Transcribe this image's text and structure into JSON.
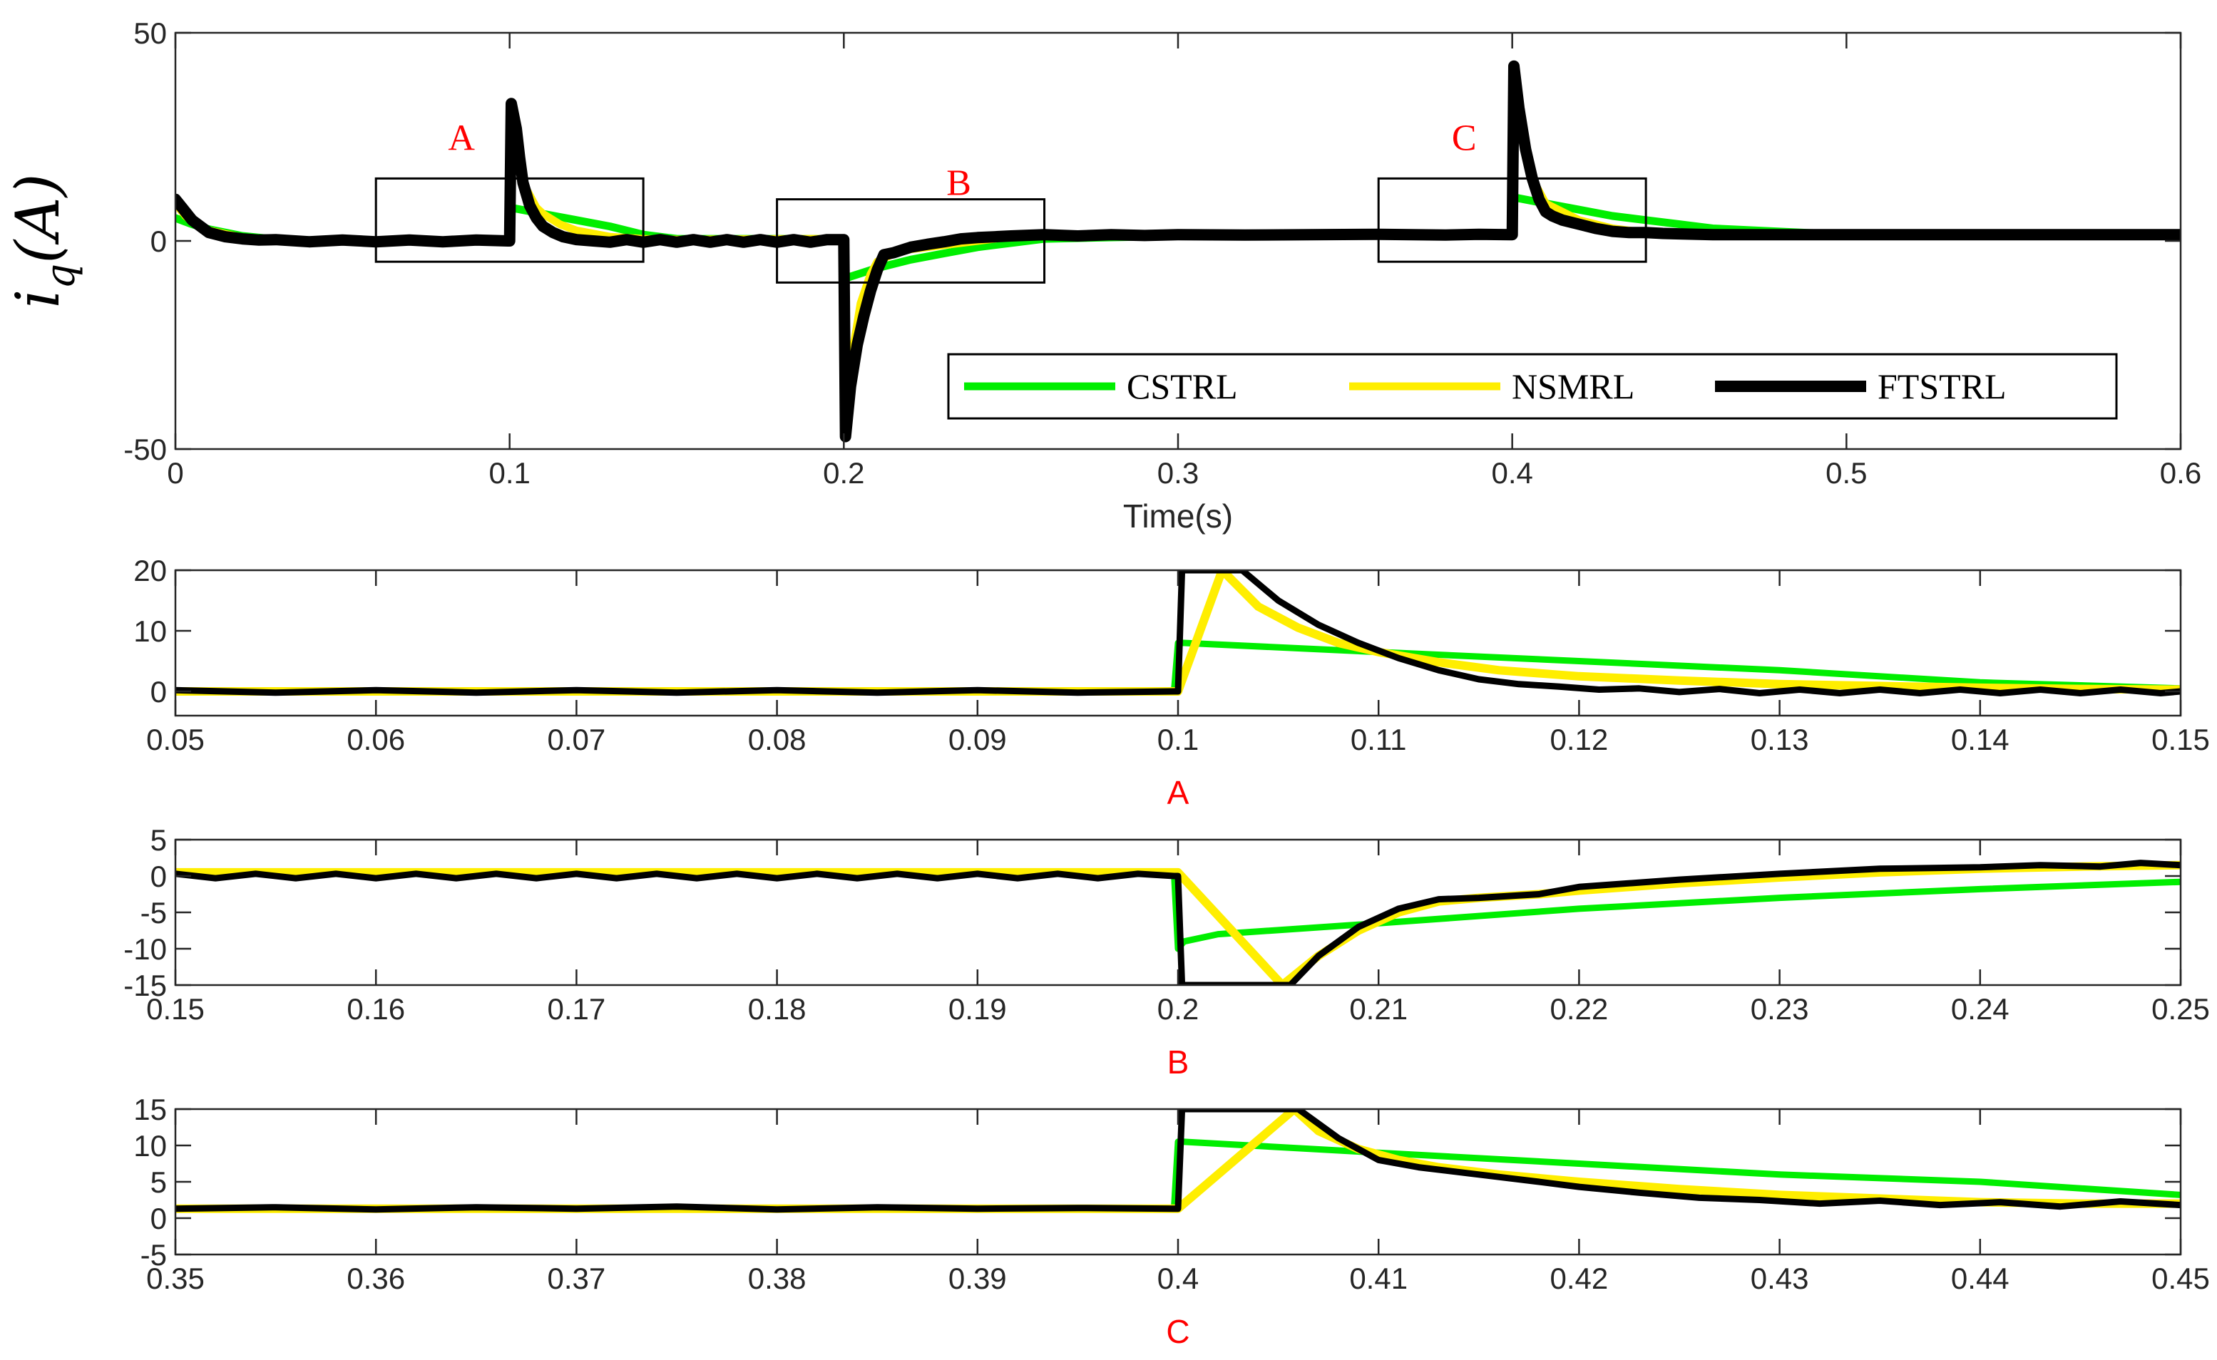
{
  "chart_data": [
    {
      "id": "main",
      "type": "line",
      "xlabel": "Time(s)",
      "ylabel": {
        "base": "i",
        "sub": "q",
        "rest": "(A)"
      },
      "xlim": [
        0,
        0.6
      ],
      "ylim": [
        -50,
        50
      ],
      "xticks": [
        0,
        0.1,
        0.2,
        0.3,
        0.4,
        0.5,
        0.6
      ],
      "xtick_labels": [
        "0",
        "0.1",
        "0.2",
        "0.3",
        "0.4",
        "0.5",
        "0.6"
      ],
      "yticks": [
        -50,
        0,
        50
      ],
      "ytick_labels": [
        "-50",
        "0",
        "50"
      ],
      "legend": {
        "position": "bottom-right",
        "entries": [
          "CSTRL",
          "NSMRL",
          "FTSTRL"
        ]
      },
      "zoom_boxes": [
        {
          "label": "A",
          "x": [
            0.06,
            0.14
          ],
          "y": [
            -5,
            15
          ]
        },
        {
          "label": "B",
          "x": [
            0.18,
            0.26
          ],
          "y": [
            -10,
            10
          ]
        },
        {
          "label": "C",
          "x": [
            0.36,
            0.44
          ],
          "y": [
            -5,
            15
          ]
        }
      ],
      "series": [
        {
          "name": "CSTRL",
          "color": "#00ee00",
          "width": 11,
          "x": [
            0,
            0.005,
            0.01,
            0.02,
            0.03,
            0.05,
            0.08,
            0.0995,
            0.1,
            0.1003,
            0.11,
            0.12,
            0.13,
            0.14,
            0.15,
            0.19,
            0.1995,
            0.2,
            0.2003,
            0.21,
            0.22,
            0.23,
            0.24,
            0.25,
            0.26,
            0.3,
            0.3995,
            0.4,
            0.4003,
            0.41,
            0.42,
            0.43,
            0.44,
            0.45,
            0.46,
            0.5,
            0.6
          ],
          "y": [
            5.5,
            4,
            2.8,
            1.2,
            0.4,
            0,
            0,
            0,
            8,
            8,
            6.5,
            5,
            3.5,
            1.5,
            0.5,
            0.5,
            0.5,
            -10,
            -9,
            -6.5,
            -4.5,
            -3,
            -1.5,
            -0.5,
            0.5,
            1.2,
            1.3,
            1.3,
            10.5,
            9,
            7.5,
            6,
            5,
            4,
            3,
            1.5,
            1.5
          ]
        },
        {
          "name": "NSMRL",
          "color": "#ffee00",
          "width": 11,
          "x": [
            0,
            0.003,
            0.006,
            0.01,
            0.02,
            0.03,
            0.05,
            0.08,
            0.0995,
            0.1,
            0.1005,
            0.102,
            0.104,
            0.108,
            0.11,
            0.115,
            0.12,
            0.13,
            0.14,
            0.15,
            0.19,
            0.1995,
            0.2,
            0.2005,
            0.203,
            0.205,
            0.208,
            0.21,
            0.215,
            0.22,
            0.23,
            0.24,
            0.25,
            0.26,
            0.3,
            0.3995,
            0.4,
            0.4005,
            0.403,
            0.406,
            0.41,
            0.42,
            0.43,
            0.44,
            0.45,
            0.5,
            0.6
          ],
          "y": [
            9,
            6,
            4,
            2.5,
            0.8,
            0.3,
            0,
            0,
            0,
            0,
            30,
            20,
            14,
            8,
            6.5,
            4,
            2.5,
            1,
            0.5,
            0.3,
            0.5,
            0.5,
            0.5,
            -44,
            -25,
            -15,
            -8,
            -5,
            -3,
            -2,
            -1,
            0,
            1,
            1.2,
            1.2,
            1.2,
            1.2,
            38,
            25,
            15,
            9,
            5,
            3,
            2,
            1.6,
            1.5,
            1.5
          ]
        },
        {
          "name": "FTSTRL",
          "color": "#000000",
          "width": 16,
          "x": [
            0,
            0.002,
            0.005,
            0.01,
            0.015,
            0.02,
            0.025,
            0.03,
            0.04,
            0.05,
            0.06,
            0.07,
            0.08,
            0.09,
            0.0995,
            0.1,
            0.1005,
            0.102,
            0.103,
            0.104,
            0.106,
            0.108,
            0.11,
            0.113,
            0.116,
            0.12,
            0.125,
            0.13,
            0.135,
            0.14,
            0.145,
            0.15,
            0.155,
            0.16,
            0.165,
            0.17,
            0.175,
            0.18,
            0.185,
            0.19,
            0.195,
            0.1995,
            0.2,
            0.2005,
            0.202,
            0.204,
            0.206,
            0.208,
            0.21,
            0.212,
            0.215,
            0.22,
            0.225,
            0.23,
            0.235,
            0.24,
            0.245,
            0.25,
            0.26,
            0.27,
            0.28,
            0.29,
            0.3,
            0.32,
            0.34,
            0.36,
            0.38,
            0.39,
            0.3995,
            0.4,
            0.4005,
            0.402,
            0.404,
            0.406,
            0.408,
            0.41,
            0.412,
            0.415,
            0.42,
            0.425,
            0.43,
            0.435,
            0.44,
            0.445,
            0.45,
            0.46,
            0.48,
            0.5,
            0.55,
            0.6
          ],
          "y": [
            10,
            8,
            5,
            2,
            1,
            0.5,
            0.2,
            0.3,
            -0.2,
            0.2,
            -0.2,
            0.2,
            -0.2,
            0.2,
            0,
            0,
            33,
            27,
            20,
            14,
            8.5,
            5.5,
            3.5,
            2,
            1,
            0.3,
            0,
            -0.3,
            0.3,
            -0.3,
            0.3,
            -0.3,
            0.3,
            -0.3,
            0.3,
            -0.3,
            0.3,
            -0.3,
            0.3,
            -0.3,
            0.3,
            0.3,
            0.3,
            -47,
            -35,
            -25,
            -18,
            -12,
            -7,
            -3.3,
            -2.8,
            -1.5,
            -0.8,
            -0.2,
            0.5,
            0.8,
            1,
            1.2,
            1.5,
            1.2,
            1.5,
            1.3,
            1.5,
            1.4,
            1.5,
            1.6,
            1.4,
            1.6,
            1.5,
            1.5,
            42,
            32,
            22,
            15,
            10,
            7,
            6,
            5,
            4,
            3,
            2.3,
            2,
            2,
            1.8,
            1.7,
            1.5,
            1.5,
            1.5,
            1.5,
            1.5
          ]
        }
      ]
    },
    {
      "id": "zoom-a",
      "type": "line",
      "title": "A",
      "xlim": [
        0.05,
        0.15
      ],
      "ylim": [
        -4,
        20
      ],
      "xticks": [
        0.05,
        0.06,
        0.07,
        0.08,
        0.09,
        0.1,
        0.11,
        0.12,
        0.13,
        0.14,
        0.15
      ],
      "xtick_labels": [
        "0.05",
        "0.06",
        "0.07",
        "0.08",
        "0.09",
        "0.1",
        "0.11",
        "0.12",
        "0.13",
        "0.14",
        "0.15"
      ],
      "yticks": [
        0,
        10,
        20
      ],
      "ytick_labels": [
        "0",
        "10",
        "20"
      ],
      "series": [
        {
          "name": "CSTRL",
          "color": "#00ee00",
          "width": 9,
          "x": [
            0.05,
            0.0998,
            0.1,
            0.1003,
            0.11,
            0.12,
            0.13,
            0.14,
            0.15
          ],
          "y": [
            0,
            0,
            8,
            8,
            6.5,
            5,
            3.5,
            1.5,
            0.5
          ]
        },
        {
          "name": "NSMRL",
          "color": "#ffee00",
          "width": 12,
          "x": [
            0.05,
            0.0998,
            0.1,
            0.1022,
            0.104,
            0.106,
            0.108,
            0.11,
            0.113,
            0.116,
            0.12,
            0.125,
            0.13,
            0.135,
            0.14,
            0.145,
            0.15
          ],
          "y": [
            0,
            0,
            0,
            20,
            14,
            10.5,
            8,
            6.5,
            4.8,
            3.5,
            2.5,
            1.8,
            1.2,
            0.9,
            0.6,
            0.4,
            0.3
          ]
        },
        {
          "name": "FTSTRL",
          "color": "#000000",
          "width": 9,
          "x": [
            0.05,
            0.055,
            0.06,
            0.065,
            0.07,
            0.075,
            0.08,
            0.085,
            0.09,
            0.095,
            0.0998,
            0.1,
            0.1002,
            0.1005,
            0.1032,
            0.105,
            0.107,
            0.109,
            0.111,
            0.113,
            0.115,
            0.117,
            0.119,
            0.121,
            0.123,
            0.125,
            0.127,
            0.129,
            0.131,
            0.133,
            0.135,
            0.137,
            0.139,
            0.141,
            0.143,
            0.145,
            0.147,
            0.149,
            0.15
          ],
          "y": [
            0.2,
            -0.2,
            0.2,
            -0.2,
            0.2,
            -0.2,
            0.2,
            -0.2,
            0.2,
            -0.2,
            0,
            0,
            20,
            20,
            20,
            15,
            11,
            8,
            5.5,
            3.5,
            2,
            1.2,
            0.8,
            0.3,
            0.5,
            -0.1,
            0.4,
            -0.3,
            0.3,
            -0.3,
            0.3,
            -0.3,
            0.3,
            -0.3,
            0.3,
            -0.3,
            0.3,
            -0.3,
            0
          ]
        }
      ]
    },
    {
      "id": "zoom-b",
      "type": "line",
      "title": "B",
      "xlim": [
        0.15,
        0.25
      ],
      "ylim": [
        -15,
        5
      ],
      "xticks": [
        0.15,
        0.16,
        0.17,
        0.18,
        0.19,
        0.2,
        0.21,
        0.22,
        0.23,
        0.24,
        0.25
      ],
      "xtick_labels": [
        "0.15",
        "0.16",
        "0.17",
        "0.18",
        "0.19",
        "0.2",
        "0.21",
        "0.22",
        "0.23",
        "0.24",
        "0.25"
      ],
      "yticks": [
        -15,
        -10,
        -5,
        0,
        5
      ],
      "ytick_labels": [
        "-15",
        "-10",
        "-5",
        "0",
        "5"
      ],
      "series": [
        {
          "name": "CSTRL",
          "color": "#00ee00",
          "width": 9,
          "x": [
            0.15,
            0.1998,
            0.2,
            0.2003,
            0.202,
            0.21,
            0.22,
            0.23,
            0.24,
            0.25
          ],
          "y": [
            0.5,
            0.5,
            -10,
            -9,
            -8,
            -6.5,
            -4.5,
            -3,
            -1.8,
            -0.8
          ]
        },
        {
          "name": "NSMRL",
          "color": "#ffee00",
          "width": 12,
          "x": [
            0.15,
            0.1998,
            0.2,
            0.2052,
            0.207,
            0.209,
            0.211,
            0.213,
            0.215,
            0.218,
            0.22,
            0.225,
            0.23,
            0.235,
            0.24,
            0.245,
            0.25
          ],
          "y": [
            0.5,
            0.5,
            0.5,
            -15,
            -11,
            -7.5,
            -5,
            -3.5,
            -3,
            -2.5,
            -2,
            -1,
            -0.2,
            0.5,
            1,
            1.3,
            1.5
          ]
        },
        {
          "name": "FTSTRL",
          "color": "#000000",
          "width": 9,
          "x": [
            0.15,
            0.152,
            0.154,
            0.156,
            0.158,
            0.16,
            0.162,
            0.164,
            0.166,
            0.168,
            0.17,
            0.172,
            0.174,
            0.176,
            0.178,
            0.18,
            0.182,
            0.184,
            0.186,
            0.188,
            0.19,
            0.192,
            0.194,
            0.196,
            0.198,
            0.1998,
            0.2,
            0.2002,
            0.2056,
            0.207,
            0.209,
            0.211,
            0.213,
            0.215,
            0.218,
            0.22,
            0.225,
            0.23,
            0.235,
            0.24,
            0.243,
            0.246,
            0.248,
            0.25
          ],
          "y": [
            0.3,
            -0.3,
            0.3,
            -0.3,
            0.3,
            -0.3,
            0.3,
            -0.3,
            0.3,
            -0.3,
            0.3,
            -0.3,
            0.3,
            -0.3,
            0.3,
            -0.3,
            0.3,
            -0.3,
            0.3,
            -0.3,
            0.3,
            -0.3,
            0.3,
            -0.3,
            0.3,
            0,
            0,
            -15,
            -15,
            -11,
            -7,
            -4.5,
            -3.2,
            -3,
            -2.5,
            -1.5,
            -0.5,
            0.3,
            1,
            1.2,
            1.5,
            1.3,
            1.8,
            1.5
          ]
        }
      ]
    },
    {
      "id": "zoom-c",
      "type": "line",
      "title": "C",
      "xlim": [
        0.35,
        0.45
      ],
      "ylim": [
        -5,
        15
      ],
      "xticks": [
        0.35,
        0.36,
        0.37,
        0.38,
        0.39,
        0.4,
        0.41,
        0.42,
        0.43,
        0.44,
        0.45
      ],
      "xtick_labels": [
        "0.35",
        "0.36",
        "0.37",
        "0.38",
        "0.39",
        "0.4",
        "0.41",
        "0.42",
        "0.43",
        "0.44",
        "0.45"
      ],
      "yticks": [
        -5,
        0,
        5,
        10,
        15
      ],
      "ytick_labels": [
        "-5",
        "0",
        "5",
        "10",
        "15"
      ],
      "series": [
        {
          "name": "CSTRL",
          "color": "#00ee00",
          "width": 9,
          "x": [
            0.35,
            0.3998,
            0.4,
            0.4003,
            0.41,
            0.42,
            0.43,
            0.44,
            0.45
          ],
          "y": [
            1.3,
            1.3,
            10.5,
            10.5,
            9,
            7.5,
            6,
            5,
            3.2
          ]
        },
        {
          "name": "NSMRL",
          "color": "#ffee00",
          "width": 12,
          "x": [
            0.35,
            0.3998,
            0.4,
            0.4058,
            0.407,
            0.409,
            0.411,
            0.413,
            0.416,
            0.42,
            0.425,
            0.43,
            0.435,
            0.44,
            0.445,
            0.45
          ],
          "y": [
            1.3,
            1.3,
            1.3,
            15,
            12,
            9.5,
            8,
            7,
            6,
            5,
            4,
            3.2,
            2.7,
            2.2,
            2,
            2
          ]
        },
        {
          "name": "FTSTRL",
          "color": "#000000",
          "width": 9,
          "x": [
            0.35,
            0.355,
            0.36,
            0.365,
            0.37,
            0.375,
            0.38,
            0.385,
            0.39,
            0.395,
            0.3998,
            0.4,
            0.4002,
            0.406,
            0.408,
            0.41,
            0.412,
            0.415,
            0.418,
            0.42,
            0.423,
            0.426,
            0.429,
            0.432,
            0.435,
            0.438,
            0.441,
            0.444,
            0.447,
            0.45
          ],
          "y": [
            1.3,
            1.5,
            1.2,
            1.5,
            1.3,
            1.6,
            1.2,
            1.5,
            1.3,
            1.4,
            1.3,
            1.3,
            15,
            15,
            11,
            8,
            7,
            6,
            5,
            4.3,
            3.5,
            2.8,
            2.5,
            2,
            2.4,
            1.8,
            2.2,
            1.6,
            2.3,
            1.8
          ]
        }
      ]
    }
  ]
}
